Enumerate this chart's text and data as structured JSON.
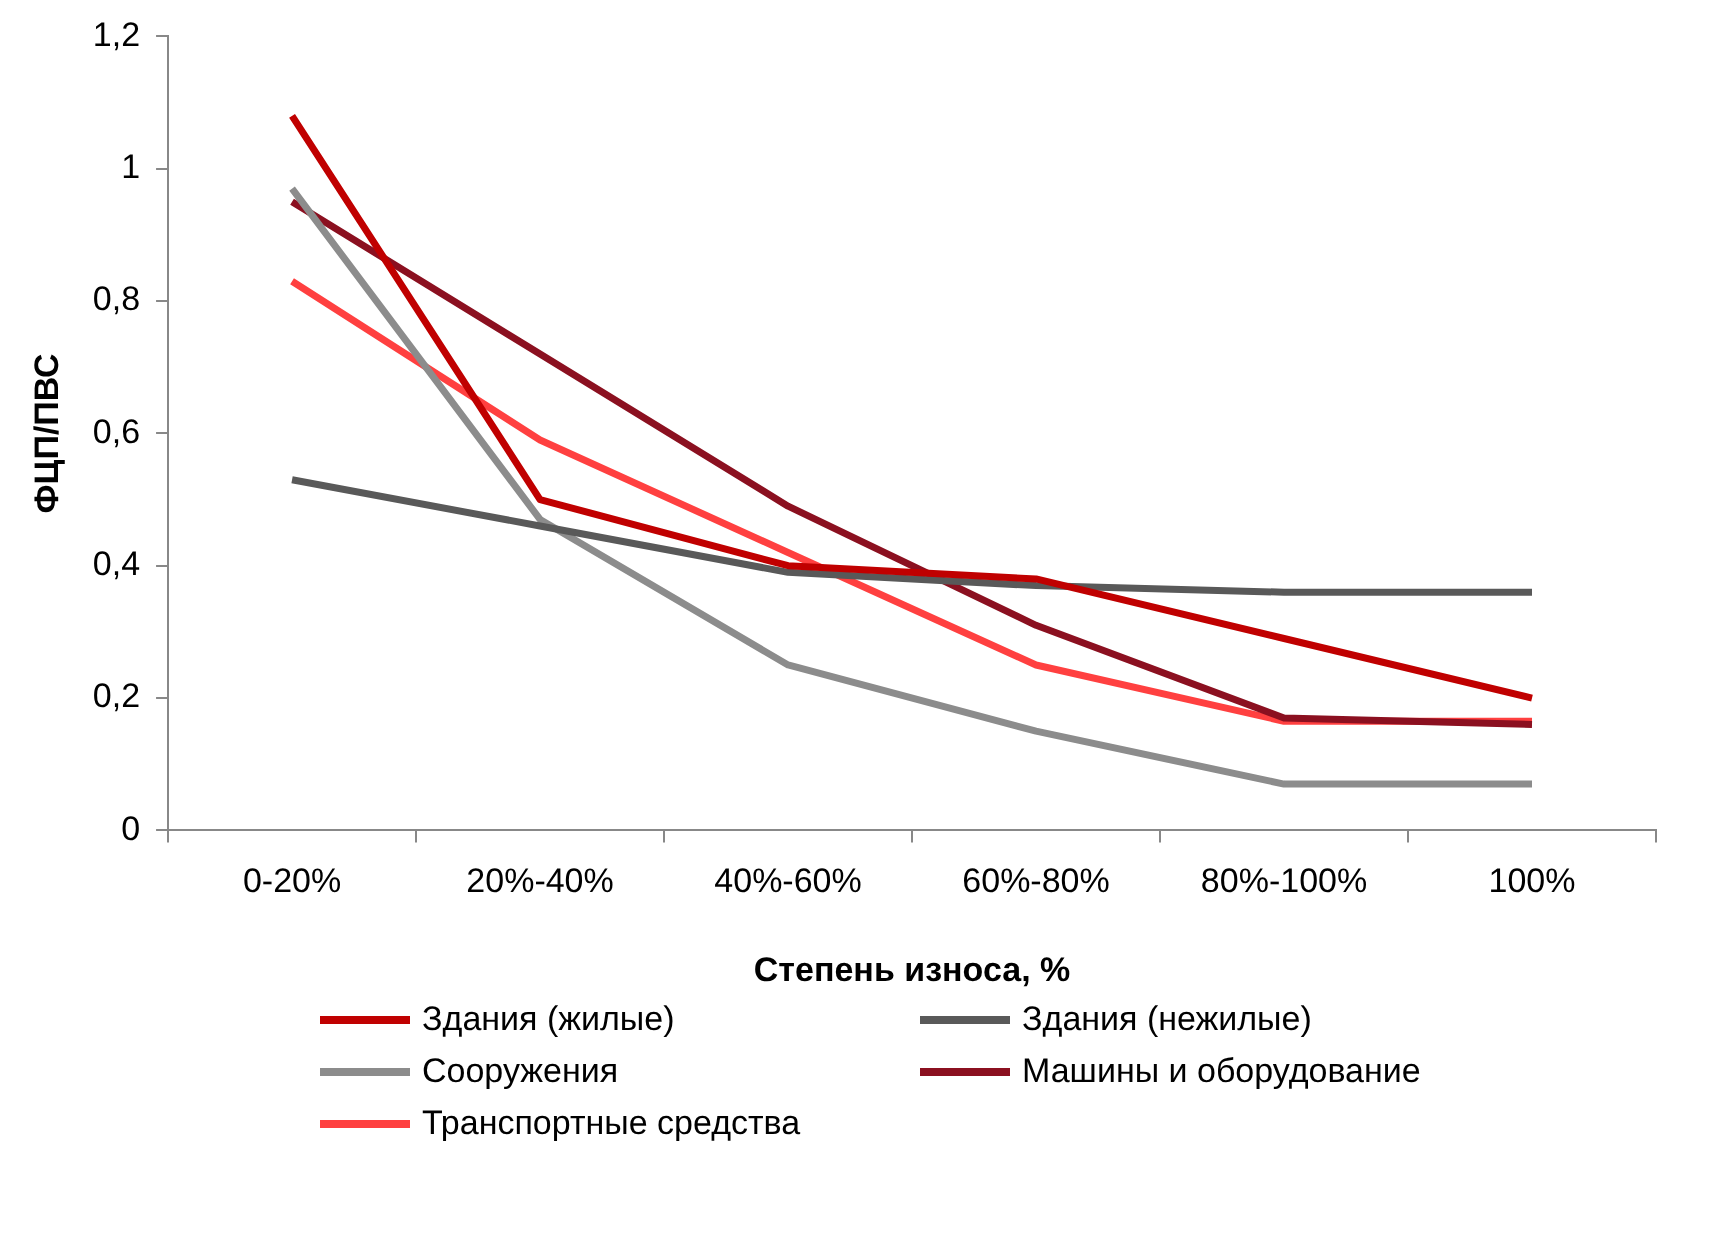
{
  "chart_data": {
    "type": "line",
    "xlabel": "Степень износа, %",
    "ylabel": "ФЦП/ПВС",
    "categories": [
      "0-20%",
      "20%-40%",
      "40%-60%",
      "60%-80%",
      "80%-100%",
      "100%"
    ],
    "ylim": [
      0,
      1.2
    ],
    "yticks": [
      0,
      {
        "value": 0.2,
        "label": "0,2"
      },
      {
        "value": 0.4,
        "label": "0,4"
      },
      {
        "value": 0.6,
        "label": "0,6"
      },
      {
        "value": 0.8,
        "label": "0,8"
      },
      1,
      {
        "value": 1.2,
        "label": "1,2"
      }
    ],
    "legend": "bottom",
    "marker": "none",
    "line_style": "solid",
    "series": [
      {
        "name": "Здания (жилые)",
        "color": "#c00000",
        "values": [
          1.08,
          0.5,
          0.4,
          0.38,
          0.29,
          0.2
        ]
      },
      {
        "name": "Здания (нежилые)",
        "color": "#595959",
        "values": [
          0.53,
          0.46,
          0.39,
          0.37,
          0.36,
          0.36
        ]
      },
      {
        "name": "Сооружения",
        "color": "#8c8c8c",
        "values": [
          0.97,
          0.47,
          0.25,
          0.15,
          0.07,
          0.07
        ]
      },
      {
        "name": "Машины и оборудование",
        "color": "#8b1020",
        "values": [
          0.95,
          0.72,
          0.49,
          0.31,
          0.17,
          0.16
        ]
      },
      {
        "name": "Транспортные средства",
        "color": "#ff4040",
        "values": [
          0.83,
          0.59,
          0.42,
          0.25,
          0.165,
          0.165
        ]
      }
    ]
  }
}
